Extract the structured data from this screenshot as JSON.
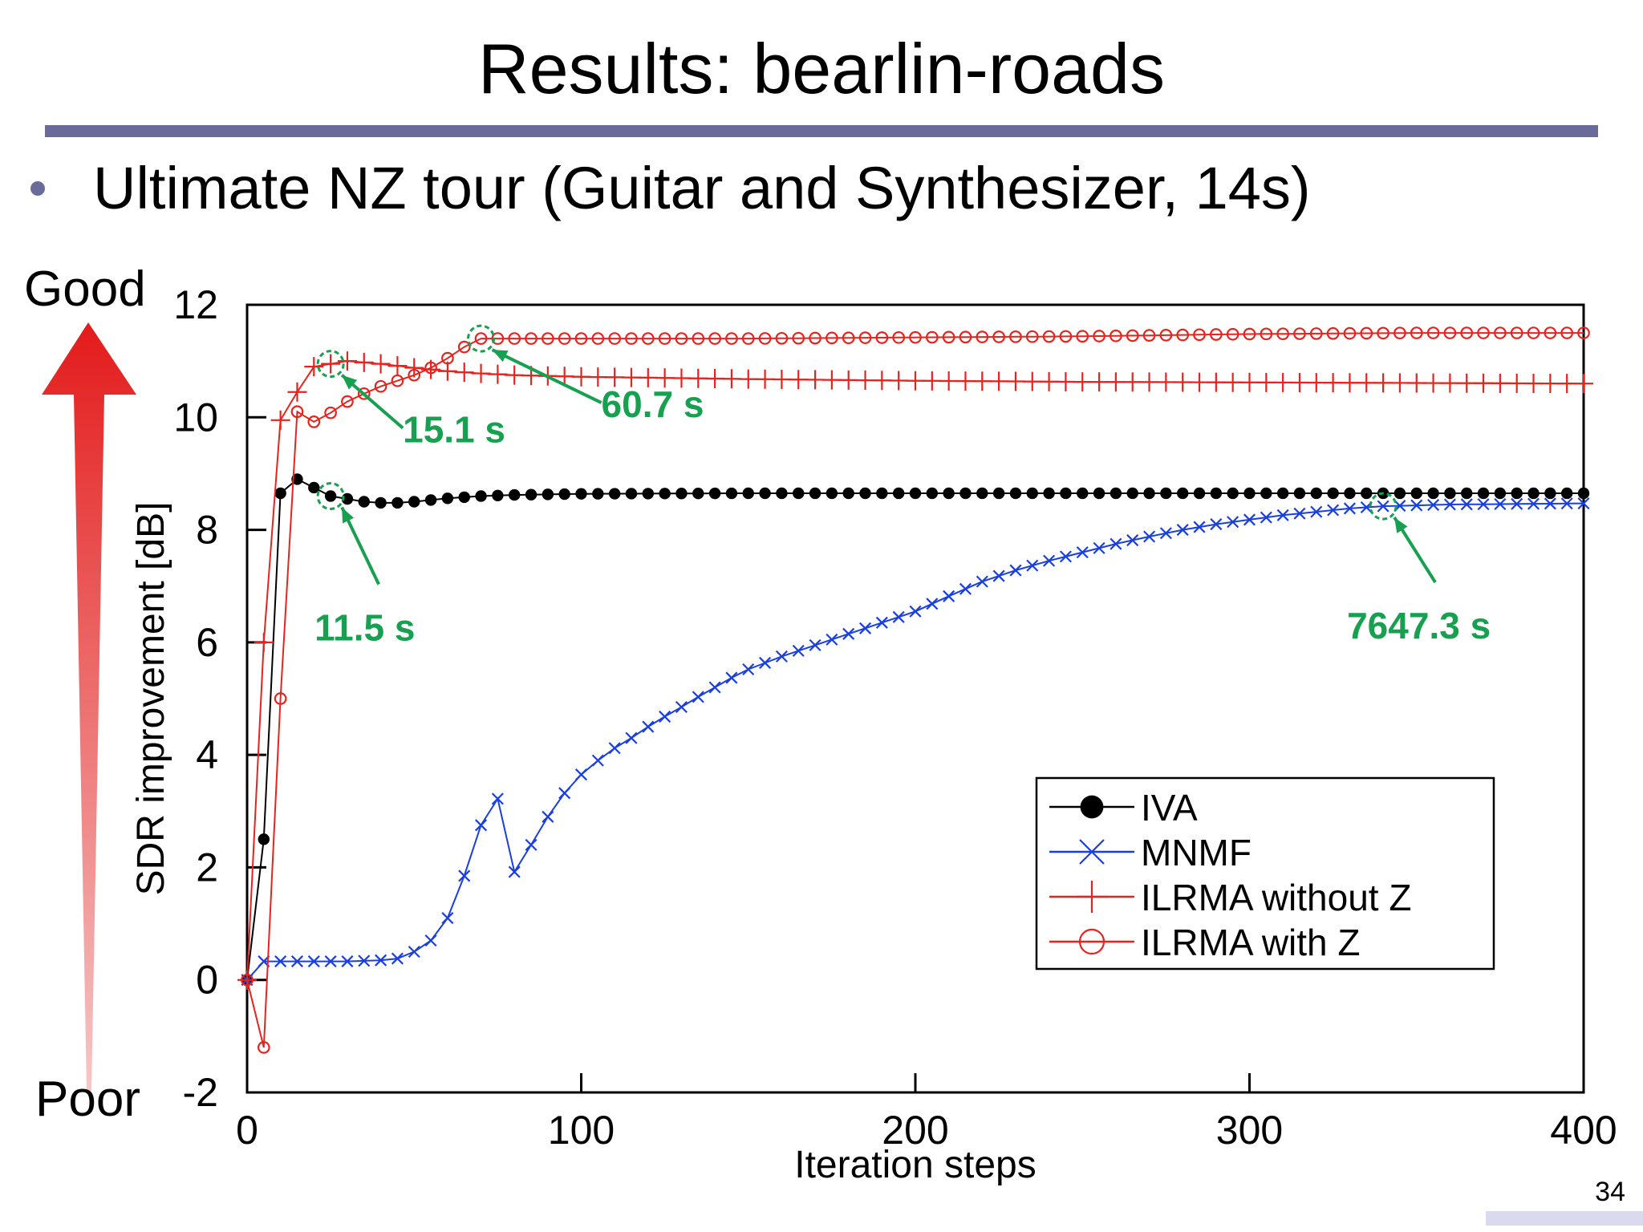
{
  "slide": {
    "title": "Results: bearlin-roads",
    "bullet": "Ultimate NZ tour (Guitar and Synthesizer, 14s)",
    "good_label": "Good",
    "poor_label": "Poor",
    "page_number": "34"
  },
  "colors": {
    "accent_rule": "#6b6b9a",
    "iva": "#000000",
    "mnmf": "#1a3fe0",
    "ilrma": "#e8231e",
    "annotation": "#16a050",
    "arrow_top": "#e31b1b",
    "arrow_bottom": "#f7c7c7"
  },
  "chart_data": {
    "type": "line",
    "xlabel": "Iteration steps",
    "ylabel": "SDR improvement [dB]",
    "xlim": [
      0,
      400
    ],
    "ylim": [
      -2,
      12
    ],
    "xticks": [
      0,
      100,
      200,
      300,
      400
    ],
    "yticks": [
      -2,
      0,
      2,
      4,
      6,
      8,
      10,
      12
    ],
    "legend_position": "lower-right",
    "series": [
      {
        "name": "IVA",
        "marker": "filled-circle",
        "color": "#000000",
        "points": [
          [
            0,
            0
          ],
          [
            5,
            2.5
          ],
          [
            10,
            8.65
          ],
          [
            15,
            8.9
          ],
          [
            20,
            8.75
          ],
          [
            25,
            8.6
          ],
          [
            30,
            8.55
          ],
          [
            35,
            8.5
          ],
          [
            40,
            8.48
          ],
          [
            45,
            8.48
          ],
          [
            50,
            8.5
          ],
          [
            55,
            8.53
          ],
          [
            60,
            8.56
          ],
          [
            65,
            8.58
          ],
          [
            70,
            8.6
          ],
          [
            75,
            8.61
          ],
          [
            80,
            8.62
          ],
          [
            90,
            8.63
          ],
          [
            100,
            8.64
          ],
          [
            150,
            8.65
          ],
          [
            200,
            8.65
          ],
          [
            300,
            8.65
          ],
          [
            400,
            8.65
          ]
        ]
      },
      {
        "name": "MNMF",
        "marker": "cross",
        "color": "#1a3fe0",
        "points": [
          [
            0,
            0
          ],
          [
            5,
            0.33
          ],
          [
            10,
            0.33
          ],
          [
            20,
            0.33
          ],
          [
            30,
            0.33
          ],
          [
            40,
            0.35
          ],
          [
            45,
            0.38
          ],
          [
            50,
            0.5
          ],
          [
            55,
            0.7
          ],
          [
            60,
            1.1
          ],
          [
            65,
            1.85
          ],
          [
            70,
            2.75
          ],
          [
            75,
            3.22
          ],
          [
            80,
            1.92
          ],
          [
            85,
            2.4
          ],
          [
            90,
            2.9
          ],
          [
            95,
            3.32
          ],
          [
            100,
            3.65
          ],
          [
            105,
            3.9
          ],
          [
            110,
            4.12
          ],
          [
            115,
            4.3
          ],
          [
            120,
            4.5
          ],
          [
            125,
            4.68
          ],
          [
            130,
            4.85
          ],
          [
            135,
            5.03
          ],
          [
            140,
            5.2
          ],
          [
            145,
            5.37
          ],
          [
            150,
            5.52
          ],
          [
            160,
            5.75
          ],
          [
            170,
            5.95
          ],
          [
            180,
            6.15
          ],
          [
            190,
            6.35
          ],
          [
            200,
            6.55
          ],
          [
            210,
            6.82
          ],
          [
            220,
            7.08
          ],
          [
            230,
            7.28
          ],
          [
            240,
            7.45
          ],
          [
            250,
            7.6
          ],
          [
            260,
            7.75
          ],
          [
            270,
            7.88
          ],
          [
            280,
            8.0
          ],
          [
            290,
            8.1
          ],
          [
            300,
            8.18
          ],
          [
            310,
            8.26
          ],
          [
            320,
            8.32
          ],
          [
            330,
            8.38
          ],
          [
            340,
            8.42
          ],
          [
            360,
            8.45
          ],
          [
            380,
            8.46
          ],
          [
            400,
            8.47
          ]
        ]
      },
      {
        "name": "ILRMA without Z",
        "marker": "plus",
        "color": "#e8231e",
        "points": [
          [
            0,
            0
          ],
          [
            5,
            6.0
          ],
          [
            10,
            9.95
          ],
          [
            15,
            10.45
          ],
          [
            20,
            10.9
          ],
          [
            25,
            10.95
          ],
          [
            30,
            11.0
          ],
          [
            40,
            10.95
          ],
          [
            50,
            10.88
          ],
          [
            60,
            10.82
          ],
          [
            70,
            10.78
          ],
          [
            80,
            10.75
          ],
          [
            100,
            10.72
          ],
          [
            150,
            10.68
          ],
          [
            200,
            10.65
          ],
          [
            250,
            10.63
          ],
          [
            300,
            10.62
          ],
          [
            350,
            10.61
          ],
          [
            400,
            10.6
          ]
        ]
      },
      {
        "name": "ILRMA with Z",
        "marker": "open-circle",
        "color": "#e8231e",
        "points": [
          [
            0,
            0
          ],
          [
            5,
            -1.2
          ],
          [
            10,
            5.0
          ],
          [
            15,
            10.1
          ],
          [
            20,
            9.92
          ],
          [
            25,
            10.08
          ],
          [
            30,
            10.28
          ],
          [
            35,
            10.42
          ],
          [
            40,
            10.55
          ],
          [
            45,
            10.65
          ],
          [
            50,
            10.75
          ],
          [
            55,
            10.88
          ],
          [
            60,
            11.05
          ],
          [
            65,
            11.25
          ],
          [
            70,
            11.4
          ],
          [
            75,
            11.4
          ],
          [
            100,
            11.4
          ],
          [
            150,
            11.4
          ],
          [
            200,
            11.42
          ],
          [
            250,
            11.44
          ],
          [
            300,
            11.48
          ],
          [
            350,
            11.5
          ],
          [
            400,
            11.5
          ]
        ]
      }
    ],
    "annotations": [
      {
        "label": "15.1 s",
        "x": 25,
        "y": 10.95
      },
      {
        "label": "60.7 s",
        "x": 70,
        "y": 11.4
      },
      {
        "label": "11.5 s",
        "x": 25,
        "y": 8.6
      },
      {
        "label": "7647.3 s",
        "x": 340,
        "y": 8.42
      }
    ]
  }
}
